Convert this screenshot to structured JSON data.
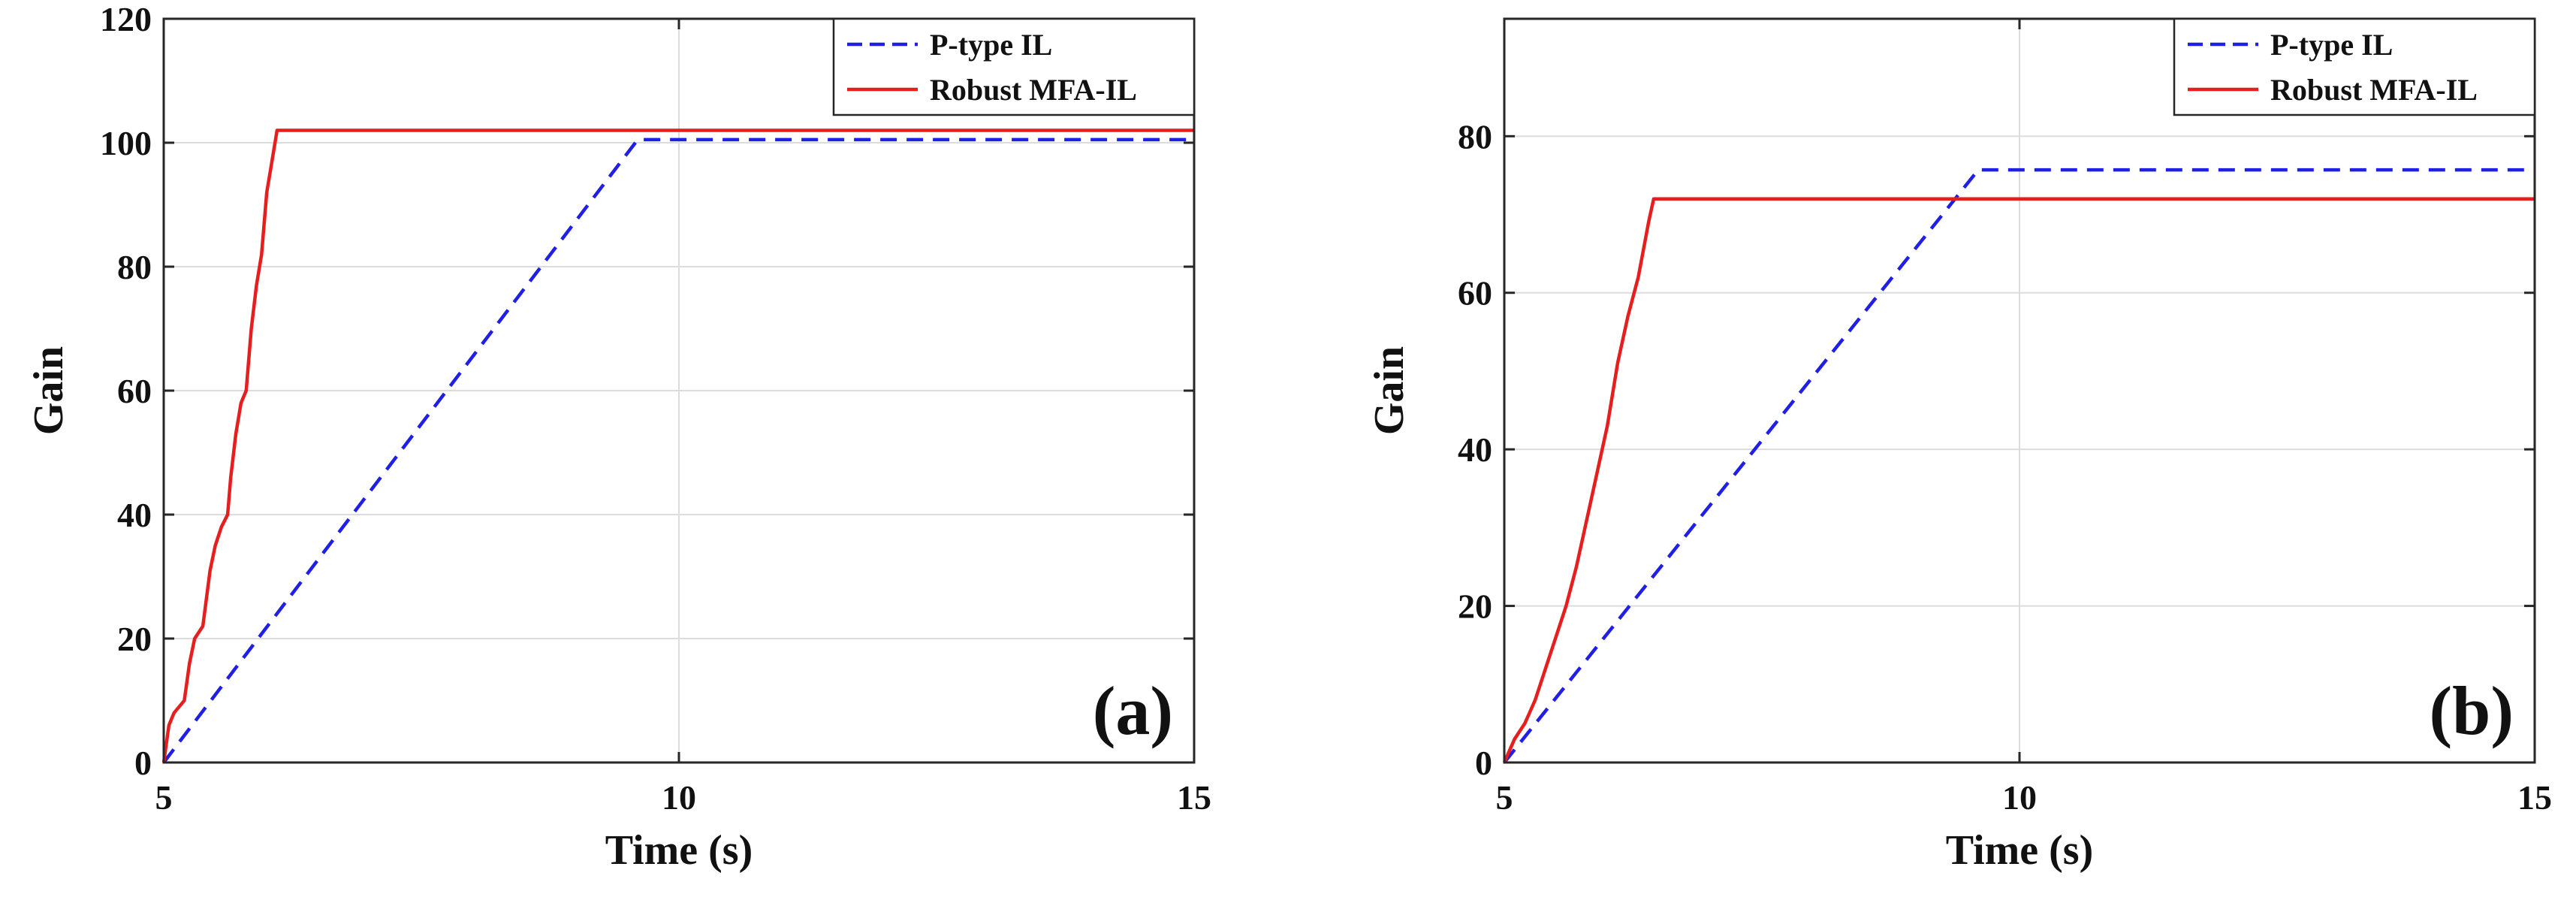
{
  "colors": {
    "p_type": "#1f1fe8",
    "robust": "#e61e1e",
    "grid": "#dcdcdc",
    "axes": "#262626"
  },
  "chart_data": [
    {
      "type": "line",
      "panel_label": "(a)",
      "xlabel": "Time (s)",
      "ylabel": "Gain",
      "xlim": [
        5,
        15
      ],
      "ylim": [
        0,
        120
      ],
      "xticks": [
        5,
        10,
        15
      ],
      "yticks": [
        0,
        20,
        40,
        60,
        80,
        100,
        120
      ],
      "grid": true,
      "legend": "top-right",
      "series": [
        {
          "name": "P-type IL",
          "style": "dashed",
          "color": "#1f1fe8",
          "x": [
            5,
            9.6,
            15
          ],
          "y": [
            0,
            100.5,
            100.5
          ]
        },
        {
          "name": "Robust MFA-IL",
          "style": "solid",
          "color": "#e61e1e",
          "x": [
            5,
            5.05,
            5.1,
            5.2,
            5.25,
            5.3,
            5.38,
            5.45,
            5.5,
            5.56,
            5.62,
            5.65,
            5.7,
            5.75,
            5.8,
            5.85,
            5.9,
            5.95,
            6.0,
            6.05,
            6.1,
            15
          ],
          "y": [
            0,
            6,
            8,
            10,
            16,
            20,
            22,
            31,
            35,
            38,
            40,
            46,
            53,
            58,
            60,
            70,
            77,
            82,
            92,
            97,
            102,
            102
          ]
        }
      ]
    },
    {
      "type": "line",
      "panel_label": "(b)",
      "xlabel": "Time (s)",
      "ylabel": "Gain",
      "xlim": [
        5,
        15
      ],
      "ylim": [
        0,
        95
      ],
      "xticks": [
        5,
        10,
        15
      ],
      "yticks": [
        0,
        20,
        40,
        60,
        80
      ],
      "grid": true,
      "legend": "top-right",
      "series": [
        {
          "name": "P-type IL",
          "style": "dashed",
          "color": "#1f1fe8",
          "x": [
            5,
            9.6,
            15
          ],
          "y": [
            0,
            75.7,
            75.7
          ]
        },
        {
          "name": "Robust MFA-IL",
          "style": "solid",
          "color": "#e61e1e",
          "x": [
            5,
            5.1,
            5.2,
            5.3,
            5.4,
            5.5,
            5.6,
            5.7,
            5.8,
            5.9,
            6.0,
            6.1,
            6.2,
            6.3,
            6.4,
            6.45,
            15
          ],
          "y": [
            0,
            3,
            5,
            8,
            12,
            16,
            20,
            25,
            31,
            37,
            43,
            51,
            57,
            62,
            69,
            72,
            72
          ]
        }
      ]
    }
  ]
}
